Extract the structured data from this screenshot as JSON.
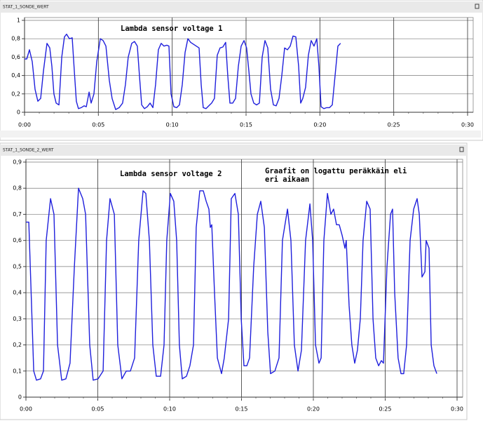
{
  "chart_data": [
    {
      "type": "line",
      "title": "STAT_1_SONDE_WERT",
      "color": "#1f1fdc",
      "grid": true,
      "xlim": [
        0,
        30
      ],
      "ylim": [
        0,
        1
      ],
      "xticks": [
        {
          "value": 0,
          "label": "0:00"
        },
        {
          "value": 5,
          "label": "0:05"
        },
        {
          "value": 10,
          "label": "0:10"
        },
        {
          "value": 15,
          "label": "0:15"
        },
        {
          "value": 20,
          "label": "0:20"
        },
        {
          "value": 25,
          "label": "0:25"
        },
        {
          "value": 30,
          "label": "0:30"
        }
      ],
      "yticks": [
        0,
        {
          "value": 0.2,
          "label": "0,2"
        },
        {
          "value": 0.4,
          "label": "0,4"
        },
        {
          "value": 0.6,
          "label": "0,6"
        },
        {
          "value": 0.8,
          "label": "0,8"
        },
        1
      ],
      "annotations": [
        {
          "text": [
            "Lambda sensor voltage 1"
          ],
          "color": "#e01010"
        }
      ],
      "x": [
        0,
        0.15,
        0.33,
        0.52,
        0.71,
        0.9,
        1.09,
        1.28,
        1.52,
        1.71,
        1.85,
        1.99,
        2.14,
        2.33,
        2.52,
        2.7,
        2.85,
        3.04,
        3.23,
        3.37,
        3.51,
        3.65,
        3.84,
        4.03,
        4.18,
        4.37,
        4.51,
        4.7,
        4.89,
        5.13,
        5.32,
        5.51,
        5.74,
        5.93,
        6.17,
        6.41,
        6.64,
        6.83,
        7.02,
        7.26,
        7.45,
        7.64,
        7.78,
        7.93,
        8.12,
        8.31,
        8.5,
        8.69,
        8.87,
        9.06,
        9.25,
        9.44,
        9.63,
        9.78,
        9.92,
        10.11,
        10.3,
        10.49,
        10.68,
        10.87,
        11.06,
        11.25,
        11.44,
        11.63,
        11.82,
        11.96,
        12.1,
        12.29,
        12.48,
        12.67,
        12.86,
        13.05,
        13.24,
        13.43,
        13.62,
        13.76,
        13.91,
        14.1,
        14.29,
        14.48,
        14.67,
        14.86,
        15.04,
        15.19,
        15.33,
        15.52,
        15.71,
        15.9,
        16.09,
        16.28,
        16.47,
        16.66,
        16.85,
        17.04,
        17.23,
        17.42,
        17.61,
        17.8,
        17.99,
        18.18,
        18.37,
        18.56,
        18.7,
        18.84,
        19.03,
        19.22,
        19.41,
        19.6,
        19.79,
        19.93,
        20.08,
        20.27,
        20.46,
        20.65,
        20.84,
        21.03,
        21.22,
        21.4
      ],
      "values": [
        0.58,
        0.58,
        0.68,
        0.55,
        0.25,
        0.12,
        0.15,
        0.45,
        0.75,
        0.7,
        0.5,
        0.2,
        0.1,
        0.08,
        0.6,
        0.82,
        0.85,
        0.8,
        0.81,
        0.45,
        0.12,
        0.04,
        0.05,
        0.07,
        0.06,
        0.22,
        0.1,
        0.2,
        0.55,
        0.8,
        0.78,
        0.72,
        0.35,
        0.15,
        0.03,
        0.05,
        0.1,
        0.3,
        0.6,
        0.75,
        0.77,
        0.72,
        0.4,
        0.08,
        0.04,
        0.06,
        0.1,
        0.05,
        0.3,
        0.68,
        0.75,
        0.72,
        0.73,
        0.72,
        0.2,
        0.06,
        0.05,
        0.08,
        0.3,
        0.65,
        0.8,
        0.76,
        0.74,
        0.72,
        0.7,
        0.3,
        0.05,
        0.04,
        0.07,
        0.1,
        0.15,
        0.62,
        0.7,
        0.71,
        0.76,
        0.4,
        0.1,
        0.1,
        0.15,
        0.5,
        0.72,
        0.78,
        0.7,
        0.45,
        0.2,
        0.1,
        0.08,
        0.1,
        0.6,
        0.78,
        0.7,
        0.25,
        0.08,
        0.07,
        0.15,
        0.4,
        0.7,
        0.68,
        0.72,
        0.83,
        0.82,
        0.5,
        0.1,
        0.15,
        0.27,
        0.62,
        0.78,
        0.72,
        0.8,
        0.5,
        0.06,
        0.04,
        0.05,
        0.05,
        0.08,
        0.4,
        0.72,
        0.75
      ]
    },
    {
      "type": "line",
      "title": "STAT_1_SONDE_2_WERT",
      "color": "#1f1fdc",
      "grid": true,
      "xlim": [
        0,
        30
      ],
      "ylim": [
        0,
        0.9
      ],
      "xticks": [
        {
          "value": 0,
          "label": "0:00"
        },
        {
          "value": 5,
          "label": "0:05"
        },
        {
          "value": 10,
          "label": "0:10"
        },
        {
          "value": 15,
          "label": "0:15"
        },
        {
          "value": 20,
          "label": "0:20"
        },
        {
          "value": 25,
          "label": "0:25"
        },
        {
          "value": 30,
          "label": "0:30"
        }
      ],
      "yticks": [
        0,
        {
          "value": 0.1,
          "label": "0,1"
        },
        {
          "value": 0.2,
          "label": "0,2"
        },
        {
          "value": 0.3,
          "label": "0,3"
        },
        {
          "value": 0.4,
          "label": "0,4"
        },
        {
          "value": 0.5,
          "label": "0,5"
        },
        {
          "value": 0.6,
          "label": "0,6"
        },
        {
          "value": 0.7,
          "label": "0,7"
        },
        {
          "value": 0.8,
          "label": "0,8"
        },
        {
          "value": 0.9,
          "label": "0,9"
        }
      ],
      "annotations": [
        {
          "text": [
            "Lambda sensor voltage 2"
          ],
          "color": "#000000"
        },
        {
          "text": [
            "Graafit on logattu peräkkäin eli",
            "eri aikaan"
          ],
          "color": "#000000"
        }
      ],
      "x": [
        0,
        0.2,
        0.54,
        0.73,
        1.02,
        1.22,
        1.41,
        1.71,
        1.95,
        2.2,
        2.49,
        2.78,
        3.07,
        3.37,
        3.66,
        3.95,
        4.15,
        4.44,
        4.68,
        5.02,
        5.37,
        5.61,
        5.85,
        6.15,
        6.39,
        6.68,
        6.98,
        7.27,
        7.56,
        7.85,
        8.15,
        8.34,
        8.59,
        8.83,
        9.07,
        9.37,
        9.61,
        9.8,
        10.05,
        10.29,
        10.49,
        10.68,
        10.88,
        11.17,
        11.41,
        11.66,
        11.85,
        12.1,
        12.34,
        12.54,
        12.73,
        12.83,
        12.93,
        13.12,
        13.32,
        13.61,
        13.8,
        14.1,
        14.29,
        14.54,
        14.78,
        14.98,
        15.17,
        15.37,
        15.56,
        15.85,
        16.1,
        16.34,
        16.59,
        16.83,
        17.02,
        17.32,
        17.61,
        17.85,
        18.2,
        18.44,
        18.68,
        18.93,
        19.17,
        19.46,
        19.76,
        19.95,
        20.15,
        20.39,
        20.54,
        20.73,
        20.98,
        21.22,
        21.41,
        21.61,
        21.8,
        22.0,
        22.2,
        22.29,
        22.49,
        22.68,
        22.88,
        23.07,
        23.27,
        23.46,
        23.71,
        23.95,
        24.15,
        24.34,
        24.54,
        24.73,
        24.88,
        25.12,
        25.37,
        25.51,
        25.66,
        25.9,
        26.1,
        26.29,
        26.49,
        26.73,
        26.98,
        27.22,
        27.37,
        27.56,
        27.76,
        27.85,
        28.05,
        28.2,
        28.39,
        28.59
      ],
      "values": [
        0.67,
        0.67,
        0.1,
        0.065,
        0.07,
        0.1,
        0.6,
        0.76,
        0.7,
        0.2,
        0.065,
        0.07,
        0.13,
        0.5,
        0.8,
        0.76,
        0.7,
        0.2,
        0.065,
        0.07,
        0.1,
        0.6,
        0.76,
        0.7,
        0.2,
        0.07,
        0.1,
        0.1,
        0.15,
        0.6,
        0.79,
        0.78,
        0.6,
        0.2,
        0.08,
        0.08,
        0.2,
        0.6,
        0.78,
        0.75,
        0.6,
        0.2,
        0.07,
        0.08,
        0.12,
        0.2,
        0.65,
        0.79,
        0.79,
        0.75,
        0.72,
        0.65,
        0.66,
        0.4,
        0.15,
        0.09,
        0.15,
        0.3,
        0.76,
        0.78,
        0.7,
        0.3,
        0.12,
        0.12,
        0.15,
        0.5,
        0.7,
        0.75,
        0.65,
        0.25,
        0.09,
        0.1,
        0.15,
        0.6,
        0.72,
        0.6,
        0.2,
        0.1,
        0.18,
        0.6,
        0.74,
        0.6,
        0.2,
        0.13,
        0.15,
        0.6,
        0.78,
        0.7,
        0.72,
        0.66,
        0.66,
        0.62,
        0.57,
        0.6,
        0.35,
        0.2,
        0.13,
        0.18,
        0.3,
        0.6,
        0.75,
        0.72,
        0.3,
        0.15,
        0.12,
        0.14,
        0.13,
        0.5,
        0.7,
        0.72,
        0.4,
        0.15,
        0.09,
        0.09,
        0.2,
        0.6,
        0.72,
        0.76,
        0.7,
        0.46,
        0.48,
        0.6,
        0.57,
        0.2,
        0.12,
        0.09
      ]
    }
  ]
}
